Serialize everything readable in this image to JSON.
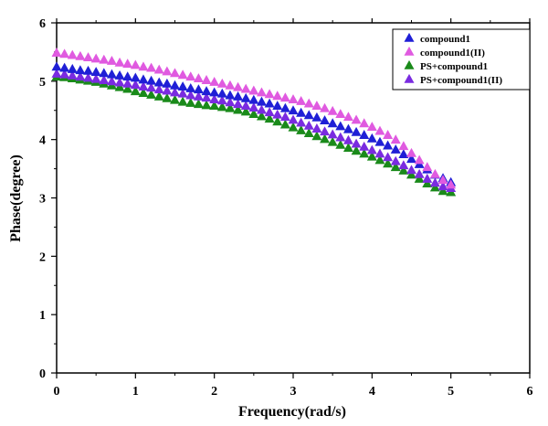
{
  "chart_data": {
    "type": "scatter",
    "xlabel": "Frequency(rad/s)",
    "ylabel": "Phase(degree)",
    "xlim": [
      0,
      6
    ],
    "ylim": [
      0,
      6
    ],
    "xticks": [
      0,
      1,
      2,
      3,
      4,
      5,
      6
    ],
    "yticks": [
      0,
      1,
      2,
      3,
      4,
      5,
      6
    ],
    "legend_position": "top-right",
    "marker": "triangle",
    "series": [
      {
        "name": "compound1",
        "color": "#1f1fd6",
        "x": [
          0,
          0.1,
          0.2,
          0.3,
          0.4,
          0.5,
          0.6,
          0.7,
          0.8,
          0.9,
          1.0,
          1.1,
          1.2,
          1.3,
          1.4,
          1.5,
          1.6,
          1.7,
          1.8,
          1.9,
          2.0,
          2.1,
          2.2,
          2.3,
          2.4,
          2.5,
          2.6,
          2.7,
          2.8,
          2.9,
          3.0,
          3.1,
          3.2,
          3.3,
          3.4,
          3.5,
          3.6,
          3.7,
          3.8,
          3.9,
          4.0,
          4.1,
          4.2,
          4.3,
          4.4,
          4.5,
          4.6,
          4.7,
          4.8,
          4.9,
          5.0
        ],
        "y": [
          5.24,
          5.22,
          5.2,
          5.18,
          5.17,
          5.15,
          5.13,
          5.11,
          5.09,
          5.07,
          5.05,
          5.02,
          5.0,
          4.97,
          4.95,
          4.92,
          4.9,
          4.87,
          4.85,
          4.82,
          4.8,
          4.78,
          4.75,
          4.73,
          4.7,
          4.67,
          4.64,
          4.61,
          4.57,
          4.53,
          4.49,
          4.45,
          4.41,
          4.37,
          4.32,
          4.27,
          4.22,
          4.17,
          4.12,
          4.07,
          4.01,
          3.95,
          3.89,
          3.82,
          3.74,
          3.66,
          3.57,
          3.48,
          3.39,
          3.33,
          3.26
        ]
      },
      {
        "name": "compound1(II)",
        "color": "#e05ae0",
        "x": [
          0,
          0.1,
          0.2,
          0.3,
          0.4,
          0.5,
          0.6,
          0.7,
          0.8,
          0.9,
          1.0,
          1.1,
          1.2,
          1.3,
          1.4,
          1.5,
          1.6,
          1.7,
          1.8,
          1.9,
          2.0,
          2.1,
          2.2,
          2.3,
          2.4,
          2.5,
          2.6,
          2.7,
          2.8,
          2.9,
          3.0,
          3.1,
          3.2,
          3.3,
          3.4,
          3.5,
          3.6,
          3.7,
          3.8,
          3.9,
          4.0,
          4.1,
          4.2,
          4.3,
          4.4,
          4.5,
          4.6,
          4.7,
          4.8,
          4.9,
          5.0
        ],
        "y": [
          5.48,
          5.46,
          5.44,
          5.42,
          5.4,
          5.38,
          5.36,
          5.34,
          5.31,
          5.29,
          5.27,
          5.24,
          5.22,
          5.19,
          5.16,
          5.13,
          5.1,
          5.07,
          5.04,
          5.01,
          4.98,
          4.95,
          4.92,
          4.89,
          4.86,
          4.83,
          4.8,
          4.77,
          4.74,
          4.71,
          4.68,
          4.65,
          4.61,
          4.57,
          4.53,
          4.48,
          4.43,
          4.38,
          4.33,
          4.27,
          4.21,
          4.14,
          4.07,
          3.99,
          3.88,
          3.76,
          3.64,
          3.52,
          3.4,
          3.3,
          3.22
        ]
      },
      {
        "name": "PS+compound1",
        "color": "#1a8a1a",
        "x": [
          0,
          0.1,
          0.2,
          0.3,
          0.4,
          0.5,
          0.6,
          0.7,
          0.8,
          0.9,
          1.0,
          1.1,
          1.2,
          1.3,
          1.4,
          1.5,
          1.6,
          1.7,
          1.8,
          1.9,
          2.0,
          2.1,
          2.2,
          2.3,
          2.4,
          2.5,
          2.6,
          2.7,
          2.8,
          2.9,
          3.0,
          3.1,
          3.2,
          3.3,
          3.4,
          3.5,
          3.6,
          3.7,
          3.8,
          3.9,
          4.0,
          4.1,
          4.2,
          4.3,
          4.4,
          4.5,
          4.6,
          4.7,
          4.8,
          4.9,
          5.0
        ],
        "y": [
          5.07,
          5.06,
          5.04,
          5.02,
          5.0,
          4.98,
          4.95,
          4.92,
          4.89,
          4.86,
          4.82,
          4.79,
          4.76,
          4.73,
          4.7,
          4.67,
          4.64,
          4.62,
          4.6,
          4.58,
          4.57,
          4.55,
          4.53,
          4.5,
          4.47,
          4.43,
          4.39,
          4.35,
          4.3,
          4.25,
          4.2,
          4.15,
          4.1,
          4.05,
          4.0,
          3.95,
          3.9,
          3.85,
          3.8,
          3.75,
          3.7,
          3.64,
          3.58,
          3.52,
          3.46,
          3.39,
          3.32,
          3.24,
          3.17,
          3.11,
          3.09
        ]
      },
      {
        "name": "PS+compound1(II)",
        "color": "#7a2be0",
        "x": [
          0,
          0.1,
          0.2,
          0.3,
          0.4,
          0.5,
          0.6,
          0.7,
          0.8,
          0.9,
          1.0,
          1.1,
          1.2,
          1.3,
          1.4,
          1.5,
          1.6,
          1.7,
          1.8,
          1.9,
          2.0,
          2.1,
          2.2,
          2.3,
          2.4,
          2.5,
          2.6,
          2.7,
          2.8,
          2.9,
          3.0,
          3.1,
          3.2,
          3.3,
          3.4,
          3.5,
          3.6,
          3.7,
          3.8,
          3.9,
          4.0,
          4.1,
          4.2,
          4.3,
          4.4,
          4.5,
          4.6,
          4.7,
          4.8,
          4.9,
          5.0
        ],
        "y": [
          5.12,
          5.11,
          5.09,
          5.07,
          5.05,
          5.03,
          5.01,
          4.99,
          4.97,
          4.95,
          4.93,
          4.9,
          4.88,
          4.85,
          4.83,
          4.8,
          4.78,
          4.75,
          4.73,
          4.71,
          4.68,
          4.66,
          4.63,
          4.6,
          4.57,
          4.54,
          4.5,
          4.46,
          4.42,
          4.38,
          4.33,
          4.28,
          4.23,
          4.18,
          4.13,
          4.08,
          4.03,
          3.98,
          3.92,
          3.87,
          3.81,
          3.75,
          3.69,
          3.62,
          3.55,
          3.47,
          3.4,
          3.32,
          3.25,
          3.19,
          3.16
        ]
      }
    ]
  }
}
